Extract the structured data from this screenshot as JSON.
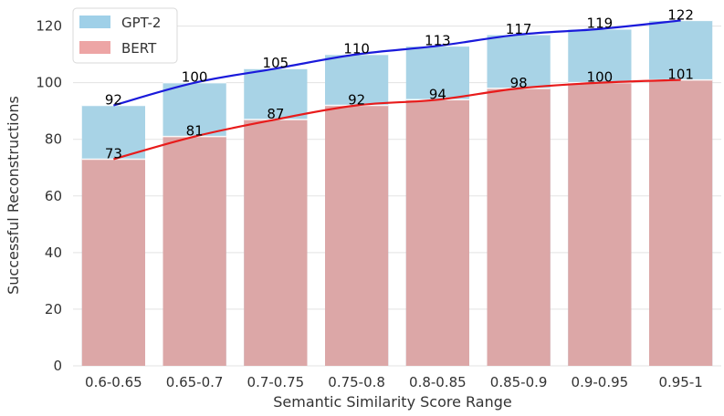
{
  "chart_data": {
    "type": "bar",
    "title": "",
    "xlabel": "Semantic Similarity Score Range",
    "ylabel": "Successful Reconstructions",
    "categories": [
      "0.6-0.65",
      "0.65-0.7",
      "0.7-0.75",
      "0.75-0.8",
      "0.8-0.85",
      "0.85-0.9",
      "0.9-0.95",
      "0.95-1"
    ],
    "series": [
      {
        "name": "GPT-2",
        "values": [
          92,
          100,
          105,
          110,
          113,
          117,
          119,
          122
        ],
        "bar_color": "#a8d3e6",
        "line_color": "#1a1adb"
      },
      {
        "name": "BERT",
        "values": [
          73,
          81,
          87,
          92,
          94,
          98,
          100,
          101
        ],
        "bar_color": "#dca7a7",
        "line_color": "#e81b1b"
      }
    ],
    "ylim": [
      0,
      126
    ],
    "yticks": [
      0,
      20,
      40,
      60,
      80,
      100,
      120
    ],
    "grid": true,
    "legend_position": "top-left",
    "legend_colors": [
      "#9fd0e8",
      "#eda5a5"
    ],
    "overlay": "trend line per series with value labels above each bar"
  }
}
